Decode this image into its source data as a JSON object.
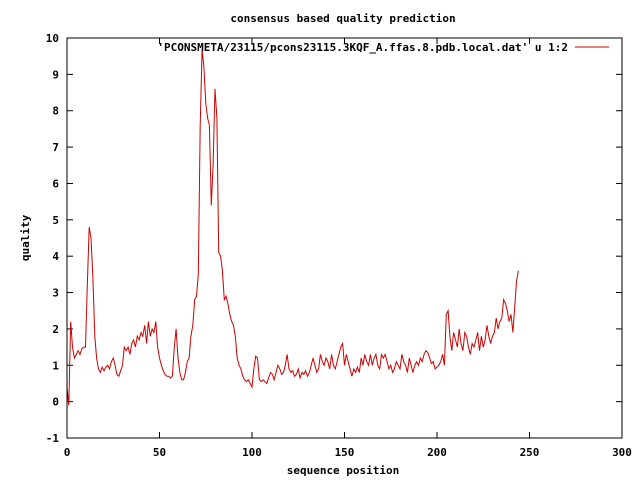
{
  "chart_data": {
    "type": "line",
    "title": "consensus based quality prediction",
    "xlabel": "sequence position",
    "ylabel": "quality",
    "xlim": [
      0,
      300
    ],
    "ylim": [
      -1,
      10
    ],
    "xticks": [
      0,
      50,
      100,
      150,
      200,
      250,
      300
    ],
    "yticks": [
      -1,
      0,
      1,
      2,
      3,
      4,
      5,
      6,
      7,
      8,
      9,
      10
    ],
    "grid": false,
    "legend_position": "top-right",
    "series": [
      {
        "name": "'PCONSMETA/23115/pcons23115.3KQF_A.ffas.8.pdb.local.dat' u 1:2",
        "color": "#cc0000",
        "points": [
          [
            0,
            0.4
          ],
          [
            1,
            -0.1
          ],
          [
            2,
            2.2
          ],
          [
            3,
            1.5
          ],
          [
            4,
            1.2
          ],
          [
            5,
            1.3
          ],
          [
            6,
            1.4
          ],
          [
            7,
            1.3
          ],
          [
            8,
            1.45
          ],
          [
            9,
            1.5
          ],
          [
            10,
            1.5
          ],
          [
            11,
            3.2
          ],
          [
            12,
            4.8
          ],
          [
            13,
            4.5
          ],
          [
            14,
            3.4
          ],
          [
            15,
            1.8
          ],
          [
            16,
            1.2
          ],
          [
            17,
            0.9
          ],
          [
            18,
            0.8
          ],
          [
            19,
            0.95
          ],
          [
            20,
            0.85
          ],
          [
            21,
            0.95
          ],
          [
            22,
            1.0
          ],
          [
            23,
            0.9
          ],
          [
            24,
            1.1
          ],
          [
            25,
            1.2
          ],
          [
            26,
            1.0
          ],
          [
            27,
            0.75
          ],
          [
            28,
            0.7
          ],
          [
            29,
            0.85
          ],
          [
            30,
            1.0
          ],
          [
            31,
            1.5
          ],
          [
            32,
            1.4
          ],
          [
            33,
            1.5
          ],
          [
            34,
            1.3
          ],
          [
            35,
            1.6
          ],
          [
            36,
            1.7
          ],
          [
            37,
            1.5
          ],
          [
            38,
            1.8
          ],
          [
            39,
            1.7
          ],
          [
            40,
            1.9
          ],
          [
            41,
            1.8
          ],
          [
            42,
            2.1
          ],
          [
            43,
            1.6
          ],
          [
            44,
            2.2
          ],
          [
            45,
            1.8
          ],
          [
            46,
            2.0
          ],
          [
            47,
            1.9
          ],
          [
            48,
            2.2
          ],
          [
            49,
            1.5
          ],
          [
            50,
            1.2
          ],
          [
            51,
            1.0
          ],
          [
            52,
            0.85
          ],
          [
            53,
            0.75
          ],
          [
            54,
            0.7
          ],
          [
            55,
            0.7
          ],
          [
            56,
            0.65
          ],
          [
            57,
            0.7
          ],
          [
            58,
            1.5
          ],
          [
            59,
            2.0
          ],
          [
            60,
            1.2
          ],
          [
            61,
            0.8
          ],
          [
            62,
            0.6
          ],
          [
            63,
            0.6
          ],
          [
            64,
            0.8
          ],
          [
            65,
            1.1
          ],
          [
            66,
            1.2
          ],
          [
            67,
            1.8
          ],
          [
            68,
            2.1
          ],
          [
            69,
            2.8
          ],
          [
            70,
            2.9
          ],
          [
            71,
            3.5
          ],
          [
            72,
            7.6
          ],
          [
            73,
            9.7
          ],
          [
            74,
            9.2
          ],
          [
            75,
            8.2
          ],
          [
            76,
            7.8
          ],
          [
            77,
            7.6
          ],
          [
            78,
            5.4
          ],
          [
            79,
            6.5
          ],
          [
            80,
            8.6
          ],
          [
            81,
            7.8
          ],
          [
            82,
            4.1
          ],
          [
            83,
            4.0
          ],
          [
            84,
            3.6
          ],
          [
            85,
            2.8
          ],
          [
            86,
            2.9
          ],
          [
            87,
            2.7
          ],
          [
            88,
            2.4
          ],
          [
            89,
            2.2
          ],
          [
            90,
            2.1
          ],
          [
            91,
            1.8
          ],
          [
            92,
            1.2
          ],
          [
            93,
            1.0
          ],
          [
            94,
            0.9
          ],
          [
            95,
            0.7
          ],
          [
            96,
            0.6
          ],
          [
            97,
            0.55
          ],
          [
            98,
            0.6
          ],
          [
            99,
            0.5
          ],
          [
            100,
            0.4
          ],
          [
            101,
            0.9
          ],
          [
            102,
            1.25
          ],
          [
            103,
            1.2
          ],
          [
            104,
            0.6
          ],
          [
            105,
            0.55
          ],
          [
            106,
            0.6
          ],
          [
            107,
            0.55
          ],
          [
            108,
            0.5
          ],
          [
            109,
            0.65
          ],
          [
            110,
            0.8
          ],
          [
            111,
            0.75
          ],
          [
            112,
            0.6
          ],
          [
            113,
            0.8
          ],
          [
            114,
            1.0
          ],
          [
            115,
            0.9
          ],
          [
            116,
            0.75
          ],
          [
            117,
            0.8
          ],
          [
            118,
            1.0
          ],
          [
            119,
            1.3
          ],
          [
            120,
            0.9
          ],
          [
            121,
            0.8
          ],
          [
            122,
            0.85
          ],
          [
            123,
            0.7
          ],
          [
            124,
            0.75
          ],
          [
            125,
            0.9
          ],
          [
            126,
            0.65
          ],
          [
            127,
            0.8
          ],
          [
            128,
            0.75
          ],
          [
            129,
            0.85
          ],
          [
            130,
            0.7
          ],
          [
            131,
            0.8
          ],
          [
            132,
            1.0
          ],
          [
            133,
            1.2
          ],
          [
            134,
            1.0
          ],
          [
            135,
            0.8
          ],
          [
            136,
            0.9
          ],
          [
            137,
            1.3
          ],
          [
            138,
            1.1
          ],
          [
            139,
            1.0
          ],
          [
            140,
            1.2
          ],
          [
            141,
            1.1
          ],
          [
            142,
            0.9
          ],
          [
            143,
            1.3
          ],
          [
            144,
            1.0
          ],
          [
            145,
            0.9
          ],
          [
            146,
            1.1
          ],
          [
            147,
            1.3
          ],
          [
            148,
            1.5
          ],
          [
            149,
            1.6
          ],
          [
            150,
            1.0
          ],
          [
            151,
            1.3
          ],
          [
            152,
            1.1
          ],
          [
            153,
            0.9
          ],
          [
            154,
            0.7
          ],
          [
            155,
            0.9
          ],
          [
            156,
            0.8
          ],
          [
            157,
            0.95
          ],
          [
            158,
            0.8
          ],
          [
            159,
            1.2
          ],
          [
            160,
            1.0
          ],
          [
            161,
            1.3
          ],
          [
            162,
            1.1
          ],
          [
            163,
            1.0
          ],
          [
            164,
            1.3
          ],
          [
            165,
            1.0
          ],
          [
            166,
            1.2
          ],
          [
            167,
            1.3
          ],
          [
            168,
            1.0
          ],
          [
            169,
            0.9
          ],
          [
            170,
            1.3
          ],
          [
            171,
            1.2
          ],
          [
            172,
            1.3
          ],
          [
            173,
            1.1
          ],
          [
            174,
            0.9
          ],
          [
            175,
            1.0
          ],
          [
            176,
            0.8
          ],
          [
            177,
            0.9
          ],
          [
            178,
            1.1
          ],
          [
            179,
            1.0
          ],
          [
            180,
            0.9
          ],
          [
            181,
            1.3
          ],
          [
            182,
            1.1
          ],
          [
            183,
            1.0
          ],
          [
            184,
            0.8
          ],
          [
            185,
            1.2
          ],
          [
            186,
            1.0
          ],
          [
            187,
            0.8
          ],
          [
            188,
            1.0
          ],
          [
            189,
            1.1
          ],
          [
            190,
            1.0
          ],
          [
            191,
            1.2
          ],
          [
            192,
            1.1
          ],
          [
            193,
            1.3
          ],
          [
            194,
            1.4
          ],
          [
            195,
            1.35
          ],
          [
            196,
            1.2
          ],
          [
            197,
            1.05
          ],
          [
            198,
            1.1
          ],
          [
            199,
            0.9
          ],
          [
            200,
            0.95
          ],
          [
            201,
            1.0
          ],
          [
            202,
            1.1
          ],
          [
            203,
            1.3
          ],
          [
            204,
            1.0
          ],
          [
            205,
            2.4
          ],
          [
            206,
            2.5
          ],
          [
            207,
            1.8
          ],
          [
            208,
            1.4
          ],
          [
            209,
            1.9
          ],
          [
            210,
            1.7
          ],
          [
            211,
            1.5
          ],
          [
            212,
            2.0
          ],
          [
            213,
            1.6
          ],
          [
            214,
            1.4
          ],
          [
            215,
            1.9
          ],
          [
            216,
            1.8
          ],
          [
            217,
            1.5
          ],
          [
            218,
            1.3
          ],
          [
            219,
            1.6
          ],
          [
            220,
            1.5
          ],
          [
            221,
            1.7
          ],
          [
            222,
            1.9
          ],
          [
            223,
            1.4
          ],
          [
            224,
            1.8
          ],
          [
            225,
            1.5
          ],
          [
            226,
            1.7
          ],
          [
            227,
            2.1
          ],
          [
            228,
            1.8
          ],
          [
            229,
            1.6
          ],
          [
            230,
            1.8
          ],
          [
            231,
            1.9
          ],
          [
            232,
            2.3
          ],
          [
            233,
            2.0
          ],
          [
            234,
            2.2
          ],
          [
            235,
            2.3
          ],
          [
            236,
            2.8
          ],
          [
            237,
            2.7
          ],
          [
            238,
            2.5
          ],
          [
            239,
            2.2
          ],
          [
            240,
            2.4
          ],
          [
            241,
            1.9
          ],
          [
            242,
            2.6
          ],
          [
            243,
            3.3
          ],
          [
            244,
            3.6
          ]
        ]
      }
    ]
  }
}
